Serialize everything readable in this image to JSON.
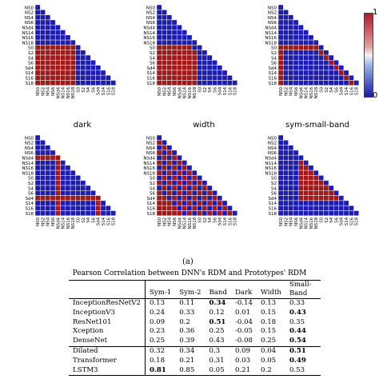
{
  "row_labels": [
    "NS0",
    "NS2",
    "NS4",
    "NS6",
    "NSd4",
    "NS14",
    "NS16",
    "NS18",
    "S0",
    "S2",
    "S4",
    "S6",
    "Sd4",
    "S14",
    "S16",
    "S18"
  ],
  "col_labels": [
    "NS0",
    "NS2",
    "NS4",
    "NS6",
    "NSd4",
    "NS14",
    "NS16",
    "NS18",
    "S0",
    "S2",
    "S4",
    "S6",
    "Sd4",
    "S14",
    "S16",
    "S18"
  ],
  "colors": {
    "red": "#a01818",
    "blue": "#1c1cb0",
    "grid": "#f0f0f0"
  },
  "panels": [
    {
      "caption": "dark",
      "pattern": "dark"
    },
    {
      "caption": "width",
      "pattern": "width"
    },
    {
      "caption": "sym-small-band",
      "pattern": "symsmall"
    },
    {
      "caption": "",
      "pattern": "crossA"
    },
    {
      "caption": "",
      "pattern": "diagband"
    },
    {
      "caption": "",
      "pattern": "block"
    }
  ],
  "colorbar": {
    "max_label": "1",
    "min_label": "0"
  },
  "figure_letter": "(a)",
  "table": {
    "title": "Pearson Correlation between DNN's RDM and Prototypes' RDM",
    "headers": [
      "",
      "Sym-1",
      "Sym-2",
      "Band",
      "Dark",
      "Width",
      "Small-Band"
    ],
    "rows": [
      {
        "cells": [
          "InceptionResNetV2",
          "0.13",
          "0.11",
          "0.34",
          "-0.14",
          "0.13",
          "0.33"
        ],
        "bold": [
          3
        ]
      },
      {
        "cells": [
          "InceptionV3",
          "0.24",
          "0.33",
          "0.12",
          "0.01",
          "0.15",
          "0.43"
        ],
        "bold": [
          6
        ]
      },
      {
        "cells": [
          "ResNet101",
          "0.09",
          "0.2",
          "0.51",
          "-0.04",
          "0.18",
          "0.35"
        ],
        "bold": [
          3
        ]
      },
      {
        "cells": [
          "Xception",
          "0.23",
          "0.36",
          "0.25",
          "-0.05",
          "0.15",
          "0.44"
        ],
        "bold": [
          6
        ]
      },
      {
        "cells": [
          "DenseNet",
          "0.25",
          "0.39",
          "0.43",
          "-0.08",
          "0.25",
          "0.54"
        ],
        "bold": [
          6
        ]
      },
      {
        "cells": [
          "Dilated",
          "0.32",
          "0.34",
          "0.3",
          "0.09",
          "0.04",
          "0.51"
        ],
        "bold": [
          6
        ]
      },
      {
        "cells": [
          "Transformer",
          "0.18",
          "0.21",
          "0.31",
          "0.03",
          "0.05",
          "0.49"
        ],
        "bold": [
          6
        ]
      },
      {
        "cells": [
          "LSTM3",
          "0.81",
          "0.85",
          "0.05",
          "0.21",
          "0.2",
          "0.53"
        ],
        "bold": [
          1
        ]
      }
    ]
  }
}
